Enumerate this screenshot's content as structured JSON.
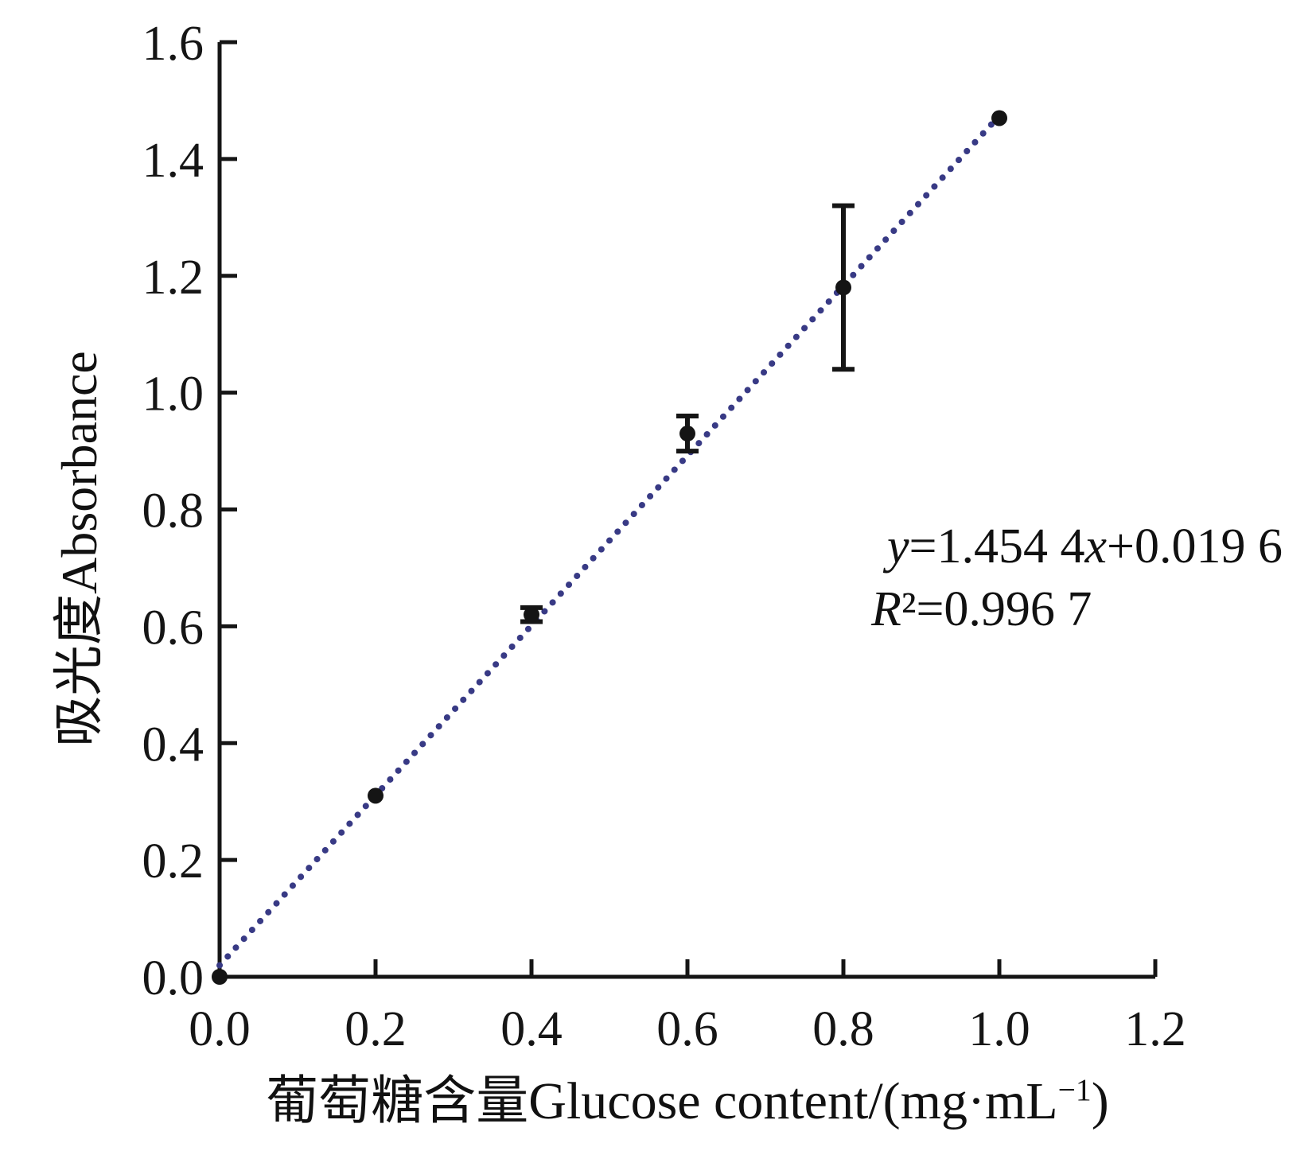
{
  "figure": {
    "background": "#ffffff"
  },
  "chart_data": {
    "type": "scatter",
    "title": "",
    "xlabel_cjk": "葡萄糖含量",
    "xlabel_en": "Glucose content/(mg·mL",
    "xlabel_sup": "−1",
    "xlabel_close": ")",
    "ylabel": "吸光度Absorbance",
    "xlim": [
      0.0,
      1.2
    ],
    "ylim": [
      0.0,
      1.6
    ],
    "xticks": [
      "0.0",
      "0.2",
      "0.4",
      "0.6",
      "0.8",
      "1.0",
      "1.2"
    ],
    "yticks": [
      "0.0",
      "0.2",
      "0.4",
      "0.6",
      "0.8",
      "1.0",
      "1.2",
      "1.4",
      "1.6"
    ],
    "grid": false,
    "legend": null,
    "points": [
      {
        "x": 0.0,
        "y": 0.0,
        "yerr": 0
      },
      {
        "x": 0.2,
        "y": 0.31,
        "yerr": 0
      },
      {
        "x": 0.4,
        "y": 0.62,
        "yerr": 0.012
      },
      {
        "x": 0.6,
        "y": 0.93,
        "yerr": 0.03
      },
      {
        "x": 0.8,
        "y": 1.18,
        "yerr": 0.14
      },
      {
        "x": 1.0,
        "y": 1.47,
        "yerr": 0
      }
    ],
    "fit_line": {
      "slope": 1.4544,
      "intercept": 0.0196,
      "x_start": 0.0,
      "x_end": 0.99,
      "style": "dotted"
    },
    "annotation": {
      "line1": "y=1.454 4x+0.019 6",
      "line2": "R²=0.996 7"
    },
    "colors": {
      "line": "#383a85",
      "points": "#151515",
      "axis": "#151515",
      "text": "#151515"
    }
  }
}
